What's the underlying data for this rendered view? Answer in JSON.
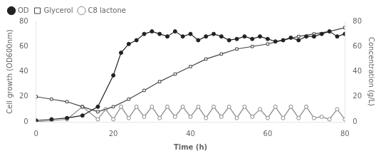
{
  "chart_data": {
    "type": "line",
    "xlabel": "Time (h)",
    "ylabel": "Cell growth (OD600nm)",
    "y2label": "Concentration (g/L)",
    "xlim": [
      0,
      80
    ],
    "xticks": [
      0,
      20,
      40,
      60,
      80
    ],
    "ylim": [
      0,
      80
    ],
    "yticks": [
      0,
      20,
      40,
      60,
      80
    ],
    "y2lim": [
      0,
      80
    ],
    "y2ticks": [
      0,
      20,
      40,
      60,
      80
    ],
    "grid": false,
    "legend": "upper left",
    "series": [
      {
        "name": "OD",
        "color": "#222222",
        "marker": "circle",
        "x": [
          0,
          4,
          8,
          12,
          16,
          20,
          22,
          24,
          26,
          28,
          30,
          32,
          34,
          36,
          38,
          40,
          42,
          44,
          46,
          48,
          50,
          52,
          54,
          56,
          58,
          60,
          62,
          64,
          66,
          68,
          70,
          72,
          74,
          76,
          78,
          80
        ],
        "values": [
          1,
          2,
          3,
          5,
          12,
          37,
          55,
          62,
          65,
          70,
          72,
          70,
          68,
          72,
          68,
          70,
          65,
          68,
          70,
          68,
          65,
          66,
          68,
          66,
          68,
          66,
          64,
          65,
          67,
          65,
          68,
          68,
          70,
          72,
          68,
          70
        ]
      },
      {
        "name": "Glycerol",
        "color": "#444444",
        "marker": "open_square",
        "axis": "y2",
        "x": [
          0,
          4,
          8,
          12,
          16,
          20,
          24,
          28,
          32,
          36,
          40,
          44,
          48,
          52,
          56,
          60,
          64,
          68,
          72,
          76,
          80
        ],
        "values": [
          20,
          18,
          16,
          12,
          8,
          12,
          18,
          25,
          32,
          38,
          44,
          50,
          54,
          58,
          60,
          62,
          65,
          68,
          70,
          72,
          75
        ]
      },
      {
        "name": "C8 lactone",
        "color": "#888888",
        "marker": "open_circle",
        "axis": "y2",
        "x": [
          0,
          4,
          8,
          12,
          16,
          18,
          20,
          22,
          24,
          26,
          28,
          30,
          32,
          34,
          36,
          38,
          40,
          42,
          44,
          46,
          48,
          50,
          52,
          54,
          56,
          58,
          60,
          62,
          64,
          66,
          68,
          70,
          72,
          74,
          76,
          78,
          80
        ],
        "values": [
          0,
          1,
          2,
          12,
          2,
          10,
          2,
          12,
          3,
          12,
          4,
          12,
          3,
          12,
          4,
          12,
          4,
          12,
          3,
          12,
          4,
          12,
          3,
          12,
          4,
          10,
          3,
          12,
          3,
          12,
          3,
          12,
          3,
          4,
          2,
          10,
          2
        ]
      }
    ]
  }
}
